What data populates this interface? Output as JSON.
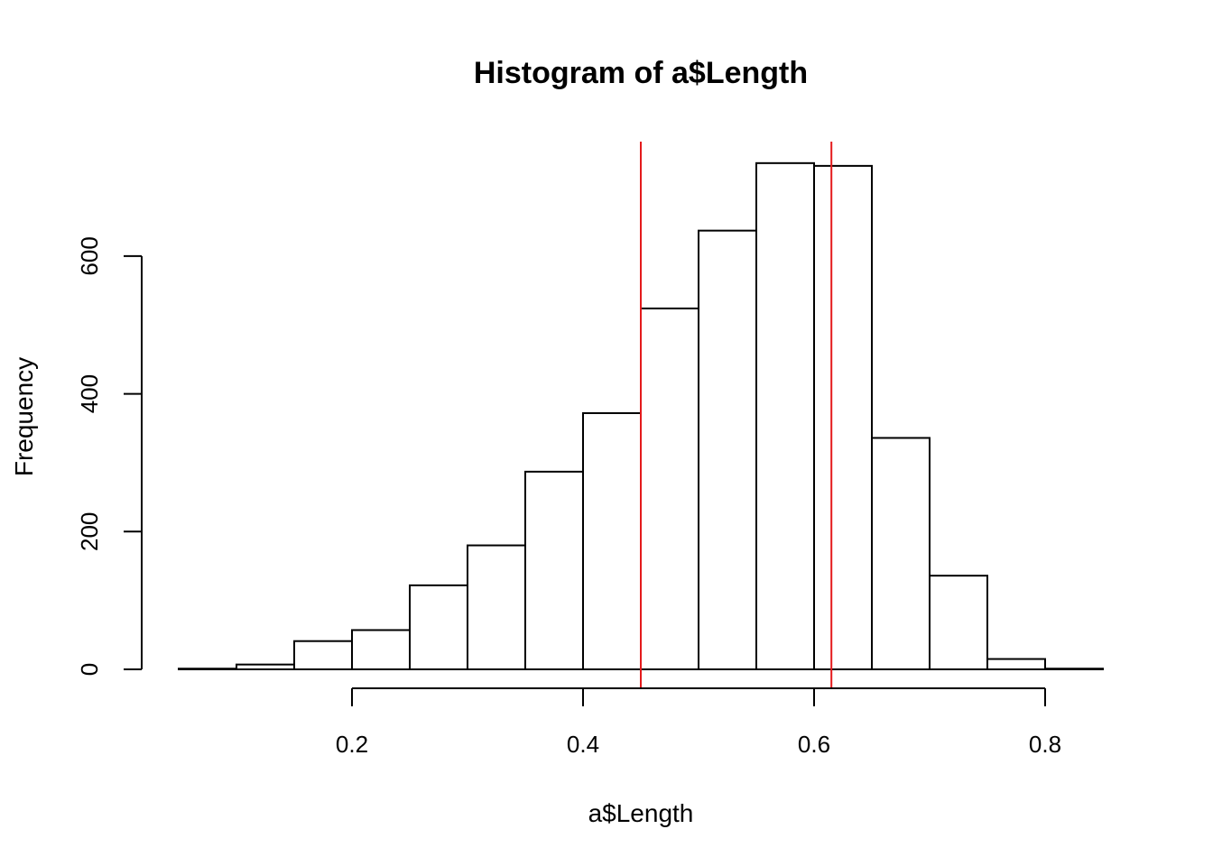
{
  "chart_data": {
    "type": "bar",
    "title": "Histogram of a$Length",
    "xlabel": "a$Length",
    "ylabel": "Frequency",
    "bins": [
      {
        "start": 0.05,
        "end": 0.1,
        "count": 1
      },
      {
        "start": 0.1,
        "end": 0.15,
        "count": 7
      },
      {
        "start": 0.15,
        "end": 0.2,
        "count": 41
      },
      {
        "start": 0.2,
        "end": 0.25,
        "count": 57
      },
      {
        "start": 0.25,
        "end": 0.3,
        "count": 122
      },
      {
        "start": 0.3,
        "end": 0.35,
        "count": 180
      },
      {
        "start": 0.35,
        "end": 0.4,
        "count": 287
      },
      {
        "start": 0.4,
        "end": 0.45,
        "count": 372
      },
      {
        "start": 0.45,
        "end": 0.5,
        "count": 524
      },
      {
        "start": 0.5,
        "end": 0.55,
        "count": 637
      },
      {
        "start": 0.55,
        "end": 0.6,
        "count": 735
      },
      {
        "start": 0.6,
        "end": 0.65,
        "count": 731
      },
      {
        "start": 0.65,
        "end": 0.7,
        "count": 336
      },
      {
        "start": 0.7,
        "end": 0.75,
        "count": 136
      },
      {
        "start": 0.75,
        "end": 0.8,
        "count": 15
      },
      {
        "start": 0.8,
        "end": 0.85,
        "count": 1
      }
    ],
    "xlim": [
      0.05,
      0.85
    ],
    "ylim": [
      0,
      760
    ],
    "x_ticks": [
      0.2,
      0.4,
      0.6,
      0.8
    ],
    "x_tick_labels": [
      "0.2",
      "0.4",
      "0.6",
      "0.8"
    ],
    "y_ticks": [
      0,
      200,
      400,
      600
    ],
    "y_tick_labels": [
      "0",
      "200",
      "400",
      "600"
    ],
    "vlines": [
      {
        "x": 0.45,
        "color": "#e41a1c"
      },
      {
        "x": 0.615,
        "color": "#e41a1c"
      }
    ],
    "bar_fill": "#ffffff",
    "bar_stroke": "#000000",
    "grid": false,
    "legend": "none"
  }
}
